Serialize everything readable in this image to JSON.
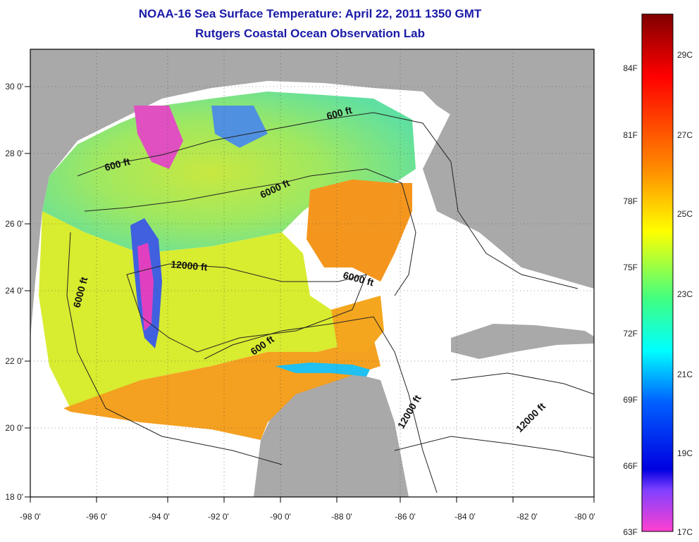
{
  "title": "NOAA-16 Sea Surface Temperature:  April 22, 2011 1350 GMT",
  "subtitle": "Rutgers Coastal Ocean Observation Lab",
  "map": {
    "lon_labels": [
      "-98 0'",
      "-96 0'",
      "-94 0'",
      "-92 0'",
      "-90 0'",
      "-88 0'",
      "-86 0'",
      "-84 0'",
      "-82 0'",
      "-80 0'"
    ],
    "lat_labels": [
      "30 0'",
      "28 0'",
      "26 0'",
      "24 0'",
      "22 0'",
      "20 0'",
      "18 0'"
    ],
    "depth_labels": [
      "600 ft",
      "600 ft",
      "600 ft",
      "6000 ft",
      "6000 ft",
      "6000 ft",
      "12000 ft",
      "12000 ft",
      "12000 ft"
    ],
    "colors": {
      "land": "#a9a9a9",
      "cloud": "#ffffff",
      "frame": "#000000"
    }
  },
  "colorbar": {
    "f_labels": [
      "84F",
      "81F",
      "78F",
      "75F",
      "72F",
      "69F",
      "66F",
      "63F"
    ],
    "c_labels": [
      "29C",
      "27C",
      "25C",
      "23C",
      "21C",
      "19C",
      "17C"
    ],
    "stops": [
      "#800000",
      "#ff0000",
      "#ff8c00",
      "#ffff00",
      "#40ff80",
      "#00ffff",
      "#0040ff",
      "#0000c0",
      "#ff00c0",
      "#ff40ff"
    ]
  }
}
